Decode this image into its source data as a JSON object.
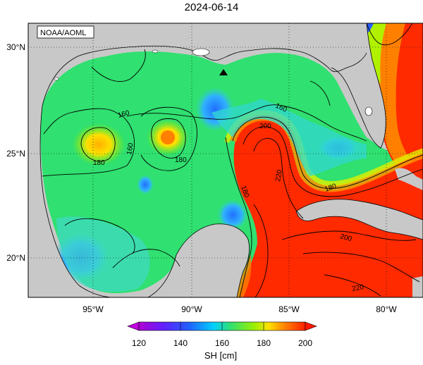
{
  "title": "2024-06-14",
  "watermark": "NOAA/AOML",
  "lat_labels": [
    "30°N",
    "25°N",
    "20°N"
  ],
  "lon_labels": [
    "95°W",
    "90°W",
    "85°W",
    "80°W"
  ],
  "contour_labels": [
    "160",
    "160",
    "160",
    "180",
    "180",
    "200",
    "220",
    "180",
    "180",
    "200",
    "220"
  ],
  "colorbar": {
    "ticks": [
      "120",
      "140",
      "160",
      "180",
      "200"
    ],
    "units": "SH [cm]",
    "stops": [
      "#b000d0",
      "#3040ff",
      "#00c8ff",
      "#30e070",
      "#a0f000",
      "#ffe000",
      "#ff8000",
      "#ff2000"
    ]
  },
  "colors": {
    "land": "#c8c8c8",
    "low": "#2060ff",
    "mid": "#30d8c0",
    "green": "#40e040",
    "high": "#ff2a00"
  }
}
